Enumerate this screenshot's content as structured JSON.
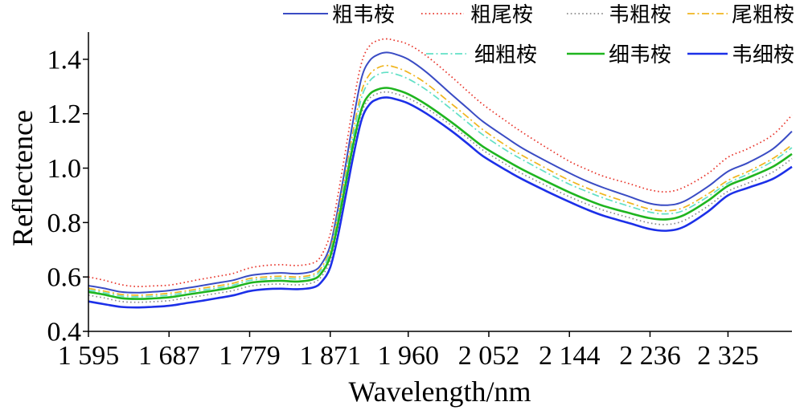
{
  "chart_data": {
    "type": "line",
    "xlabel": "Wavelength/nm",
    "ylabel": "Reflectence",
    "x_ticks": [
      "1 595",
      "1 687",
      "1 779",
      "1 871",
      "1 960",
      "2 052",
      "2 144",
      "2 236",
      "2 325"
    ],
    "y_ticks": [
      "0.4",
      "0.6",
      "0.8",
      "1.0",
      "1.2",
      "1.4"
    ],
    "xlim": [
      1595,
      2398
    ],
    "ylim": [
      0.4,
      1.5
    ],
    "grid": false,
    "legend_placement": "top-right",
    "x": [
      1595,
      1613,
      1632,
      1650,
      1668,
      1687,
      1705,
      1724,
      1742,
      1760,
      1779,
      1797,
      1815,
      1834,
      1852,
      1861,
      1871,
      1880,
      1889,
      1898,
      1907,
      1916,
      1926,
      1935,
      1944,
      1960,
      1981,
      2008,
      2027,
      2045,
      2072,
      2091,
      2118,
      2144,
      2164,
      2183,
      2210,
      2236,
      2256,
      2275,
      2302,
      2325,
      2348,
      2376,
      2398
    ],
    "series": [
      {
        "name": "粗韦桉",
        "color": "#3a4cc4",
        "line_style": "solid",
        "values": [
          0.568,
          0.558,
          0.545,
          0.542,
          0.545,
          0.55,
          0.558,
          0.568,
          0.578,
          0.588,
          0.605,
          0.612,
          0.615,
          0.612,
          0.622,
          0.648,
          0.715,
          0.855,
          1.02,
          1.19,
          1.335,
          1.395,
          1.418,
          1.425,
          1.42,
          1.4,
          1.352,
          1.275,
          1.222,
          1.172,
          1.112,
          1.072,
          1.025,
          0.982,
          0.952,
          0.928,
          0.898,
          0.87,
          0.864,
          0.878,
          0.932,
          0.988,
          1.02,
          1.07,
          1.135
        ]
      },
      {
        "name": "粗尾桉",
        "color": "#e8352b",
        "line_style": "dotted",
        "values": [
          0.6,
          0.588,
          0.572,
          0.565,
          0.567,
          0.57,
          0.58,
          0.592,
          0.602,
          0.613,
          0.633,
          0.642,
          0.645,
          0.642,
          0.652,
          0.68,
          0.758,
          0.905,
          1.075,
          1.25,
          1.39,
          1.45,
          1.47,
          1.475,
          1.47,
          1.455,
          1.412,
          1.34,
          1.285,
          1.235,
          1.172,
          1.13,
          1.075,
          1.025,
          0.995,
          0.97,
          0.945,
          0.92,
          0.913,
          0.93,
          0.98,
          1.04,
          1.072,
          1.122,
          1.195
        ]
      },
      {
        "name": "韦粗桉",
        "color": "#8c8c8c",
        "line_style": "dotted",
        "values": [
          0.533,
          0.523,
          0.51,
          0.507,
          0.509,
          0.513,
          0.522,
          0.531,
          0.54,
          0.55,
          0.566,
          0.572,
          0.574,
          0.571,
          0.58,
          0.602,
          0.66,
          0.785,
          0.935,
          1.085,
          1.205,
          1.257,
          1.275,
          1.28,
          1.275,
          1.257,
          1.22,
          1.16,
          1.113,
          1.067,
          1.013,
          0.978,
          0.935,
          0.895,
          0.868,
          0.845,
          0.82,
          0.798,
          0.793,
          0.808,
          0.86,
          0.915,
          0.945,
          0.985,
          1.035
        ]
      },
      {
        "name": "尾粗桉",
        "color": "#f0b51e",
        "line_style": "dash-dot",
        "values": [
          0.558,
          0.548,
          0.536,
          0.533,
          0.535,
          0.54,
          0.548,
          0.558,
          0.567,
          0.577,
          0.594,
          0.6,
          0.603,
          0.6,
          0.61,
          0.635,
          0.7,
          0.835,
          0.99,
          1.15,
          1.285,
          1.345,
          1.37,
          1.377,
          1.372,
          1.352,
          1.31,
          1.24,
          1.19,
          1.142,
          1.082,
          1.045,
          0.998,
          0.955,
          0.927,
          0.903,
          0.875,
          0.849,
          0.843,
          0.856,
          0.905,
          0.955,
          0.988,
          1.035,
          1.085
        ]
      },
      {
        "name": "细粗桉",
        "color": "#62e0c6",
        "line_style": "dash-dot",
        "values": [
          0.552,
          0.542,
          0.53,
          0.527,
          0.529,
          0.533,
          0.542,
          0.551,
          0.56,
          0.57,
          0.587,
          0.593,
          0.596,
          0.593,
          0.603,
          0.628,
          0.692,
          0.825,
          0.975,
          1.13,
          1.262,
          1.32,
          1.345,
          1.352,
          1.347,
          1.328,
          1.287,
          1.22,
          1.17,
          1.123,
          1.065,
          1.03,
          0.983,
          0.941,
          0.914,
          0.89,
          0.862,
          0.838,
          0.832,
          0.845,
          0.895,
          0.945,
          0.978,
          1.025,
          1.075
        ]
      },
      {
        "name": "细韦桉",
        "color": "#1fb51f",
        "line_style": "solid",
        "values": [
          0.545,
          0.535,
          0.522,
          0.519,
          0.521,
          0.525,
          0.534,
          0.543,
          0.552,
          0.562,
          0.578,
          0.584,
          0.586,
          0.583,
          0.592,
          0.615,
          0.675,
          0.8,
          0.95,
          1.1,
          1.22,
          1.272,
          1.29,
          1.295,
          1.29,
          1.272,
          1.233,
          1.172,
          1.125,
          1.08,
          1.028,
          0.994,
          0.951,
          0.911,
          0.884,
          0.861,
          0.837,
          0.816,
          0.812,
          0.828,
          0.88,
          0.935,
          0.965,
          1.005,
          1.052
        ]
      },
      {
        "name": "韦细桉",
        "color": "#1c30e8",
        "line_style": "solid",
        "values": [
          0.51,
          0.5,
          0.49,
          0.488,
          0.49,
          0.494,
          0.503,
          0.512,
          0.522,
          0.532,
          0.548,
          0.555,
          0.557,
          0.555,
          0.562,
          0.582,
          0.635,
          0.755,
          0.905,
          1.055,
          1.18,
          1.235,
          1.255,
          1.26,
          1.255,
          1.238,
          1.2,
          1.14,
          1.092,
          1.045,
          0.992,
          0.958,
          0.915,
          0.876,
          0.848,
          0.825,
          0.8,
          0.776,
          0.77,
          0.785,
          0.84,
          0.9,
          0.928,
          0.96,
          1.005
        ]
      }
    ]
  }
}
